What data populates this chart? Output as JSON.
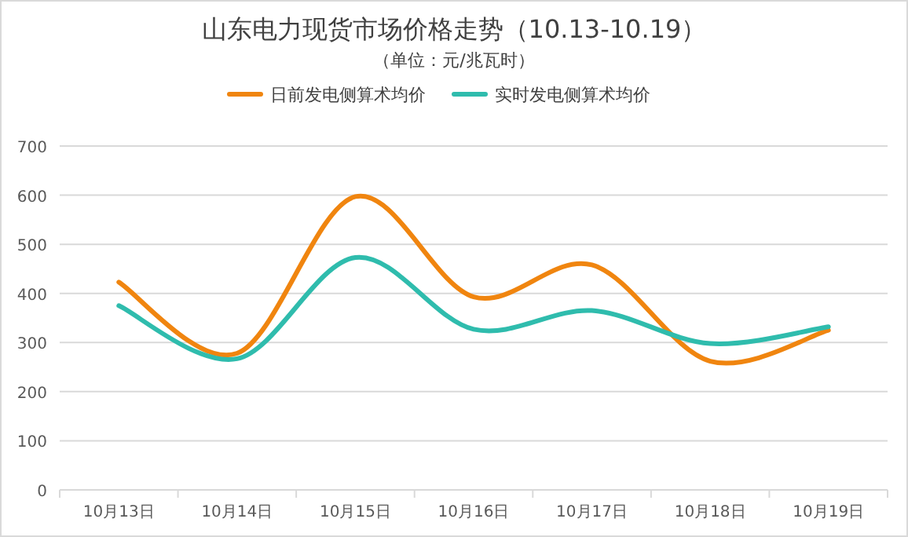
{
  "chart_data": {
    "type": "line",
    "title": "山东电力现货市场价格走势（10.13-10.19）",
    "subtitle": "（单位：元/兆瓦时）",
    "categories": [
      "10月13日",
      "10月14日",
      "10月15日",
      "10月16日",
      "10月17日",
      "10月18日",
      "10月19日"
    ],
    "series": [
      {
        "name": "日前发电侧算术均价",
        "color": "#f0850f",
        "values": [
          423,
          278,
          597,
          393,
          458,
          262,
          325
        ]
      },
      {
        "name": "实时发电侧算术均价",
        "color": "#2fbcad",
        "values": [
          375,
          267,
          473,
          327,
          365,
          298,
          332
        ]
      }
    ],
    "ylim": [
      0,
      700
    ],
    "yticks": [
      0,
      100,
      200,
      300,
      400,
      500,
      600,
      700
    ],
    "grid": "y",
    "legend": "top",
    "marker": "none",
    "line_style": "solid"
  }
}
